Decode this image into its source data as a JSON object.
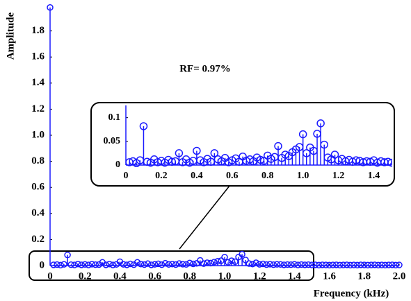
{
  "chart_data": [
    {
      "type": "stem",
      "ylabel": "Amplitude",
      "xlabel": "Frequency (kHz)",
      "annotation": "RF= 0.97%",
      "xlim": [
        0,
        2
      ],
      "ylim": [
        0,
        2
      ],
      "xticks": [
        0,
        0.2,
        0.4,
        0.6,
        0.8,
        {
          "value": 1,
          "label": "1.0"
        },
        1.2,
        1.4,
        1.6,
        1.8,
        {
          "value": 2,
          "label": "2.0"
        }
      ],
      "yticks": [
        0,
        0.2,
        0.4,
        0.6,
        0.8,
        {
          "value": 1,
          "label": "1.0"
        },
        1.2,
        1.4,
        1.6,
        1.8
      ],
      "color": "#1a1aff",
      "x": [
        0,
        0.02,
        0.04,
        0.06,
        0.08,
        0.1,
        0.12,
        0.14,
        0.16,
        0.18,
        0.2,
        0.22,
        0.24,
        0.26,
        0.28,
        0.3,
        0.32,
        0.34,
        0.36,
        0.38,
        0.4,
        0.42,
        0.44,
        0.46,
        0.48,
        0.5,
        0.52,
        0.54,
        0.56,
        0.58,
        0.6,
        0.62,
        0.64,
        0.66,
        0.68,
        0.7,
        0.72,
        0.74,
        0.76,
        0.78,
        0.8,
        0.82,
        0.84,
        0.86,
        0.88,
        0.9,
        0.92,
        0.94,
        0.96,
        0.98,
        1.0,
        1.02,
        1.04,
        1.06,
        1.08,
        1.1,
        1.12,
        1.14,
        1.16,
        1.18,
        1.2,
        1.22,
        1.24,
        1.26,
        1.28,
        1.3,
        1.32,
        1.34,
        1.36,
        1.38,
        1.4,
        1.42,
        1.44,
        1.46,
        1.48,
        1.5,
        1.52,
        1.54,
        1.56,
        1.58,
        1.6,
        1.62,
        1.64,
        1.66,
        1.68,
        1.7,
        1.72,
        1.74,
        1.76,
        1.78,
        1.8,
        1.82,
        1.84,
        1.86,
        1.88,
        1.9,
        1.92,
        1.94,
        1.96,
        1.98,
        2.0
      ],
      "values": [
        1.98,
        0.006,
        0.008,
        0.004,
        0.01,
        0.082,
        0.007,
        0.005,
        0.012,
        0.006,
        0.009,
        0.005,
        0.011,
        0.007,
        0.008,
        0.025,
        0.006,
        0.012,
        0.005,
        0.009,
        0.03,
        0.01,
        0.006,
        0.013,
        0.007,
        0.025,
        0.012,
        0.008,
        0.015,
        0.006,
        0.01,
        0.014,
        0.007,
        0.018,
        0.009,
        0.012,
        0.008,
        0.016,
        0.011,
        0.009,
        0.02,
        0.013,
        0.017,
        0.04,
        0.015,
        0.022,
        0.019,
        0.027,
        0.033,
        0.038,
        0.065,
        0.025,
        0.037,
        0.03,
        0.066,
        0.088,
        0.043,
        0.016,
        0.012,
        0.022,
        0.01,
        0.013,
        0.008,
        0.011,
        0.007,
        0.01,
        0.009,
        0.006,
        0.008,
        0.007,
        0.01,
        0.005,
        0.008,
        0.006,
        0.007,
        0.005,
        0.006,
        0.004,
        0.006,
        0.005,
        0.004,
        0.005,
        0.006,
        0.004,
        0.005,
        0.006,
        0.004,
        0.005,
        0.004,
        0.006,
        0.005,
        0.004,
        0.005,
        0.006,
        0.004,
        0.005,
        0.004,
        0.005,
        0.006,
        0.004,
        0.005
      ]
    },
    {
      "type": "stem-inset",
      "xlim": [
        0,
        1.5
      ],
      "ylim": [
        0,
        0.12
      ],
      "xticks": [
        0,
        0.2,
        0.4,
        0.6,
        0.8,
        {
          "value": 1,
          "label": "1.0"
        },
        1.2,
        1.4
      ],
      "yticks": [
        0,
        0.05,
        0.1
      ]
    }
  ]
}
